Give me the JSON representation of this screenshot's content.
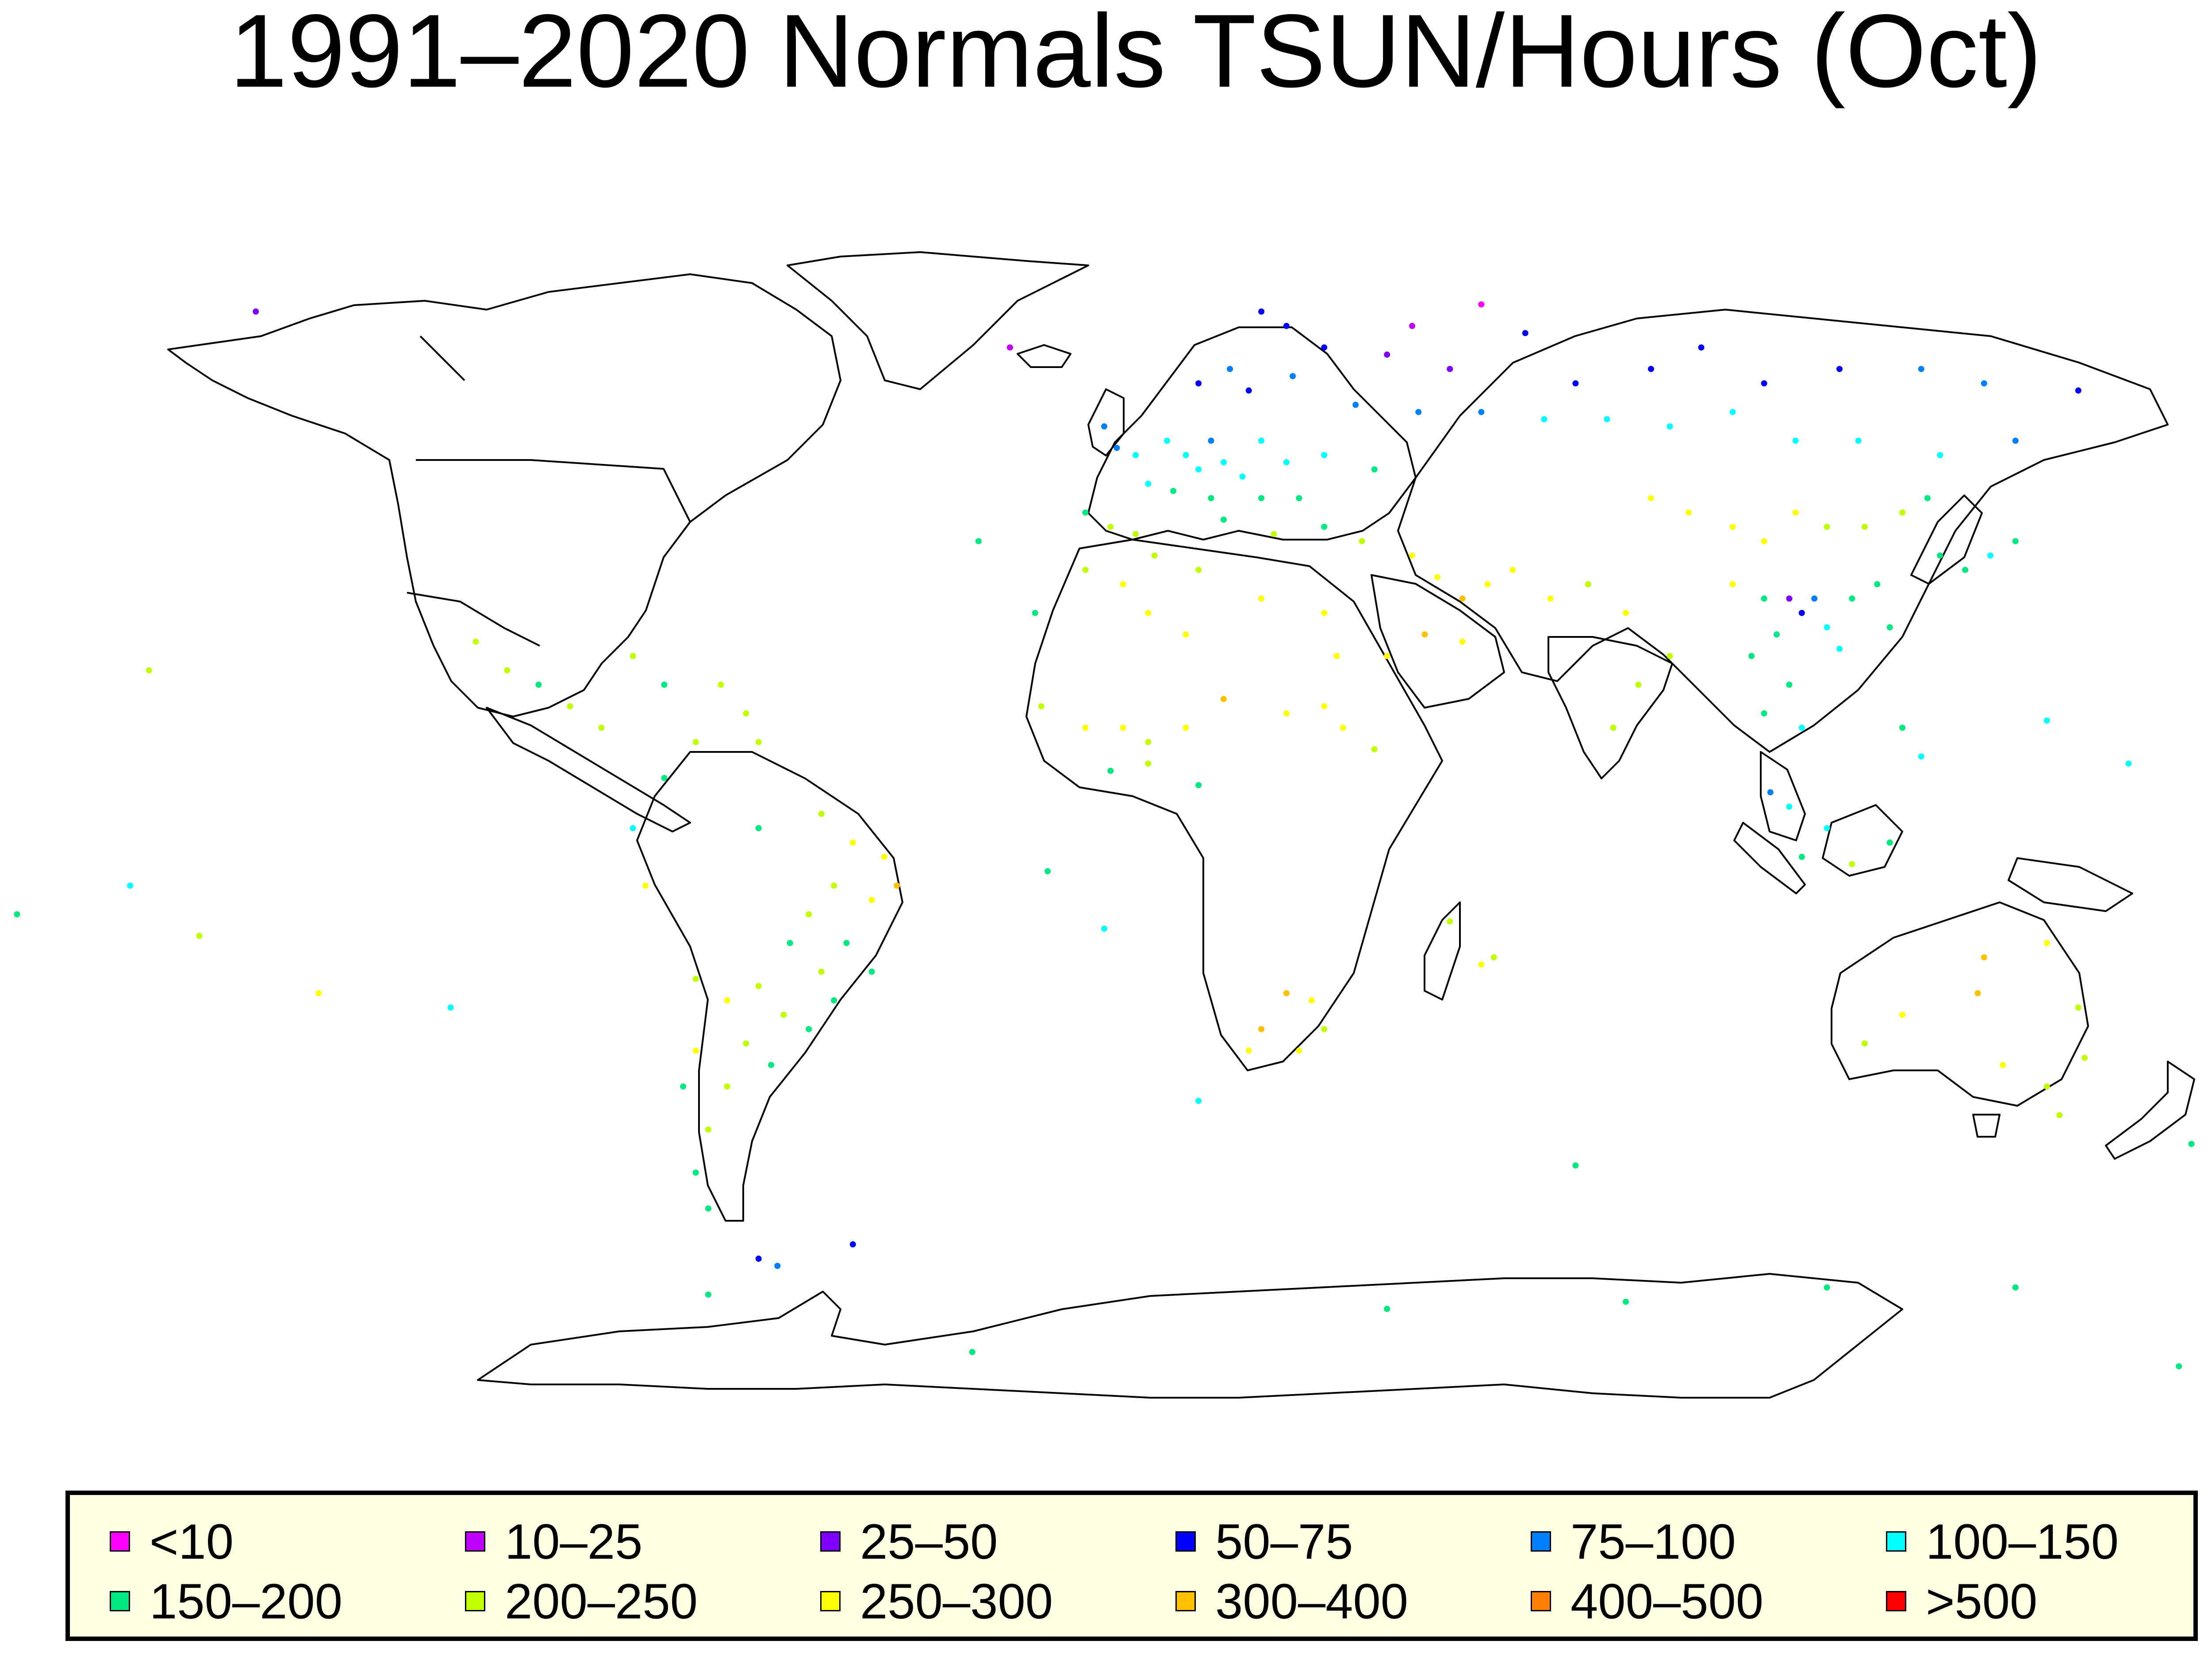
{
  "title": "1991–2020 Normals TSUN/Hours (Oct)",
  "map": {
    "projection": "equirectangular",
    "lon_range": [
      -180,
      180
    ],
    "lat_range": [
      -90,
      90
    ],
    "coastline_color": "#000000",
    "background": "#ffffff"
  },
  "legend": {
    "background": "#fefee2",
    "bins": [
      {
        "label": "<10",
        "color": "#ff00ff"
      },
      {
        "label": "10–25",
        "color": "#c000ff"
      },
      {
        "label": "25–50",
        "color": "#8000ff"
      },
      {
        "label": "50–75",
        "color": "#0000ff"
      },
      {
        "label": "75–100",
        "color": "#0080ff"
      },
      {
        "label": "100–150",
        "color": "#00ffff"
      },
      {
        "label": "150–200",
        "color": "#00e880"
      },
      {
        "label": "200–250",
        "color": "#c0ff00"
      },
      {
        "label": "250–300",
        "color": "#ffff00"
      },
      {
        "label": "300–400",
        "color": "#ffc000"
      },
      {
        "label": "400–500",
        "color": "#ff8000"
      },
      {
        "label": ">500",
        "color": "#ff0000"
      }
    ]
  },
  "stations": [
    {
      "lon": 55,
      "lat": 71,
      "bin": 0
    },
    {
      "lon": 44,
      "lat": 68,
      "bin": 1
    },
    {
      "lon": -140,
      "lat": 70,
      "bin": 2
    },
    {
      "lon": -20,
      "lat": 65,
      "bin": 1
    },
    {
      "lon": 20,
      "lat": 70,
      "bin": 3
    },
    {
      "lon": 24,
      "lat": 68,
      "bin": 3
    },
    {
      "lon": 30,
      "lat": 65,
      "bin": 3
    },
    {
      "lon": 40,
      "lat": 64,
      "bin": 2
    },
    {
      "lon": 50,
      "lat": 62,
      "bin": 2
    },
    {
      "lon": 62,
      "lat": 67,
      "bin": 3
    },
    {
      "lon": 70,
      "lat": 60,
      "bin": 3
    },
    {
      "lon": 82,
      "lat": 62,
      "bin": 3
    },
    {
      "lon": 90,
      "lat": 65,
      "bin": 3
    },
    {
      "lon": 100,
      "lat": 60,
      "bin": 3
    },
    {
      "lon": 112,
      "lat": 62,
      "bin": 3
    },
    {
      "lon": 125,
      "lat": 62,
      "bin": 4
    },
    {
      "lon": 135,
      "lat": 60,
      "bin": 4
    },
    {
      "lon": 150,
      "lat": 59,
      "bin": 3
    },
    {
      "lon": 10,
      "lat": 60,
      "bin": 3
    },
    {
      "lon": 15,
      "lat": 62,
      "bin": 4
    },
    {
      "lon": 18,
      "lat": 59,
      "bin": 3
    },
    {
      "lon": 25,
      "lat": 61,
      "bin": 4
    },
    {
      "lon": 35,
      "lat": 57,
      "bin": 4
    },
    {
      "lon": 45,
      "lat": 56,
      "bin": 4
    },
    {
      "lon": 55,
      "lat": 56,
      "bin": 4
    },
    {
      "lon": 65,
      "lat": 55,
      "bin": 5
    },
    {
      "lon": 75,
      "lat": 55,
      "bin": 5
    },
    {
      "lon": 85,
      "lat": 54,
      "bin": 5
    },
    {
      "lon": 95,
      "lat": 56,
      "bin": 5
    },
    {
      "lon": 105,
      "lat": 52,
      "bin": 5
    },
    {
      "lon": 115,
      "lat": 52,
      "bin": 5
    },
    {
      "lon": 128,
      "lat": 50,
      "bin": 5
    },
    {
      "lon": 140,
      "lat": 52,
      "bin": 4
    },
    {
      "lon": -5,
      "lat": 54,
      "bin": 4
    },
    {
      "lon": -3,
      "lat": 51,
      "bin": 4
    },
    {
      "lon": 0,
      "lat": 50,
      "bin": 5
    },
    {
      "lon": 5,
      "lat": 52,
      "bin": 5
    },
    {
      "lon": 8,
      "lat": 50,
      "bin": 5
    },
    {
      "lon": 10,
      "lat": 48,
      "bin": 5
    },
    {
      "lon": 12,
      "lat": 52,
      "bin": 4
    },
    {
      "lon": 14,
      "lat": 49,
      "bin": 5
    },
    {
      "lon": 17,
      "lat": 47,
      "bin": 5
    },
    {
      "lon": 20,
      "lat": 52,
      "bin": 5
    },
    {
      "lon": 24,
      "lat": 49,
      "bin": 5
    },
    {
      "lon": 30,
      "lat": 50,
      "bin": 5
    },
    {
      "lon": 38,
      "lat": 48,
      "bin": 6
    },
    {
      "lon": 2,
      "lat": 46,
      "bin": 5
    },
    {
      "lon": 6,
      "lat": 45,
      "bin": 6
    },
    {
      "lon": 12,
      "lat": 44,
      "bin": 6
    },
    {
      "lon": 20,
      "lat": 44,
      "bin": 6
    },
    {
      "lon": 26,
      "lat": 44,
      "bin": 6
    },
    {
      "lon": -8,
      "lat": 42,
      "bin": 6
    },
    {
      "lon": -4,
      "lat": 40,
      "bin": 7
    },
    {
      "lon": 0,
      "lat": 39,
      "bin": 7
    },
    {
      "lon": 14,
      "lat": 41,
      "bin": 6
    },
    {
      "lon": 22,
      "lat": 39,
      "bin": 7
    },
    {
      "lon": 30,
      "lat": 40,
      "bin": 6
    },
    {
      "lon": 36,
      "lat": 38,
      "bin": 7
    },
    {
      "lon": 44,
      "lat": 36,
      "bin": 8
    },
    {
      "lon": 48,
      "lat": 33,
      "bin": 8
    },
    {
      "lon": 52,
      "lat": 30,
      "bin": 9
    },
    {
      "lon": 56,
      "lat": 32,
      "bin": 8
    },
    {
      "lon": 60,
      "lat": 34,
      "bin": 8
    },
    {
      "lon": 46,
      "lat": 25,
      "bin": 9
    },
    {
      "lon": 52,
      "lat": 24,
      "bin": 8
    },
    {
      "lon": 40,
      "lat": 22,
      "bin": 8
    },
    {
      "lon": 66,
      "lat": 30,
      "bin": 8
    },
    {
      "lon": 72,
      "lat": 32,
      "bin": 7
    },
    {
      "lon": 78,
      "lat": 28,
      "bin": 8
    },
    {
      "lon": 85,
      "lat": 22,
      "bin": 7
    },
    {
      "lon": 80,
      "lat": 18,
      "bin": 7
    },
    {
      "lon": 76,
      "lat": 12,
      "bin": 7
    },
    {
      "lon": 82,
      "lat": 44,
      "bin": 8
    },
    {
      "lon": 88,
      "lat": 42,
      "bin": 8
    },
    {
      "lon": 95,
      "lat": 40,
      "bin": 8
    },
    {
      "lon": 100,
      "lat": 38,
      "bin": 8
    },
    {
      "lon": 105,
      "lat": 42,
      "bin": 8
    },
    {
      "lon": 110,
      "lat": 40,
      "bin": 7
    },
    {
      "lon": 116,
      "lat": 40,
      "bin": 7
    },
    {
      "lon": 122,
      "lat": 42,
      "bin": 7
    },
    {
      "lon": 126,
      "lat": 44,
      "bin": 6
    },
    {
      "lon": 95,
      "lat": 32,
      "bin": 8
    },
    {
      "lon": 100,
      "lat": 30,
      "bin": 6
    },
    {
      "lon": 104,
      "lat": 30,
      "bin": 2
    },
    {
      "lon": 106,
      "lat": 28,
      "bin": 3
    },
    {
      "lon": 108,
      "lat": 30,
      "bin": 4
    },
    {
      "lon": 110,
      "lat": 26,
      "bin": 5
    },
    {
      "lon": 114,
      "lat": 30,
      "bin": 6
    },
    {
      "lon": 118,
      "lat": 32,
      "bin": 6
    },
    {
      "lon": 112,
      "lat": 23,
      "bin": 5
    },
    {
      "lon": 120,
      "lat": 26,
      "bin": 6
    },
    {
      "lon": 102,
      "lat": 25,
      "bin": 6
    },
    {
      "lon": 98,
      "lat": 22,
      "bin": 6
    },
    {
      "lon": 104,
      "lat": 18,
      "bin": 6
    },
    {
      "lon": 100,
      "lat": 14,
      "bin": 6
    },
    {
      "lon": 106,
      "lat": 12,
      "bin": 5
    },
    {
      "lon": 128,
      "lat": 36,
      "bin": 6
    },
    {
      "lon": 136,
      "lat": 36,
      "bin": 5
    },
    {
      "lon": 140,
      "lat": 38,
      "bin": 6
    },
    {
      "lon": 132,
      "lat": 34,
      "bin": 6
    },
    {
      "lon": 101,
      "lat": 3,
      "bin": 4
    },
    {
      "lon": 104,
      "lat": 1,
      "bin": 5
    },
    {
      "lon": 110,
      "lat": -2,
      "bin": 5
    },
    {
      "lon": 106,
      "lat": -6,
      "bin": 6
    },
    {
      "lon": 114,
      "lat": -7,
      "bin": 7
    },
    {
      "lon": 120,
      "lat": -4,
      "bin": 6
    },
    {
      "lon": 122,
      "lat": 12,
      "bin": 6
    },
    {
      "lon": 125,
      "lat": 8,
      "bin": 5
    },
    {
      "lon": 145,
      "lat": 13,
      "bin": 5
    },
    {
      "lon": 158,
      "lat": 7,
      "bin": 5
    },
    {
      "lon": 178,
      "lat": -18,
      "bin": 6
    },
    {
      "lon": -8,
      "lat": 34,
      "bin": 7
    },
    {
      "lon": -2,
      "lat": 32,
      "bin": 8
    },
    {
      "lon": 3,
      "lat": 36,
      "bin": 7
    },
    {
      "lon": 10,
      "lat": 34,
      "bin": 7
    },
    {
      "lon": 2,
      "lat": 28,
      "bin": 8
    },
    {
      "lon": 8,
      "lat": 25,
      "bin": 8
    },
    {
      "lon": 20,
      "lat": 30,
      "bin": 8
    },
    {
      "lon": 30,
      "lat": 28,
      "bin": 8
    },
    {
      "lon": 32,
      "lat": 22,
      "bin": 8
    },
    {
      "lon": -16,
      "lat": 28,
      "bin": 6
    },
    {
      "lon": -15,
      "lat": 15,
      "bin": 7
    },
    {
      "lon": -8,
      "lat": 12,
      "bin": 8
    },
    {
      "lon": -2,
      "lat": 12,
      "bin": 8
    },
    {
      "lon": 2,
      "lat": 10,
      "bin": 7
    },
    {
      "lon": 8,
      "lat": 12,
      "bin": 8
    },
    {
      "lon": 14,
      "lat": 16,
      "bin": 9
    },
    {
      "lon": 24,
      "lat": 14,
      "bin": 8
    },
    {
      "lon": 30,
      "lat": 15,
      "bin": 8
    },
    {
      "lon": 33,
      "lat": 12,
      "bin": 8
    },
    {
      "lon": 38,
      "lat": 9,
      "bin": 7
    },
    {
      "lon": -4,
      "lat": 6,
      "bin": 6
    },
    {
      "lon": 2,
      "lat": 7,
      "bin": 7
    },
    {
      "lon": 10,
      "lat": 4,
      "bin": 6
    },
    {
      "lon": 24,
      "lat": -25,
      "bin": 9
    },
    {
      "lon": 28,
      "lat": -26,
      "bin": 8
    },
    {
      "lon": 20,
      "lat": -30,
      "bin": 9
    },
    {
      "lon": 18,
      "lat": -33,
      "bin": 8
    },
    {
      "lon": 30,
      "lat": -30,
      "bin": 7
    },
    {
      "lon": 26,
      "lat": -33,
      "bin": 8
    },
    {
      "lon": 57,
      "lat": -20,
      "bin": 7
    },
    {
      "lon": 55,
      "lat": -21,
      "bin": 8
    },
    {
      "lon": 50,
      "lat": -15,
      "bin": 7
    },
    {
      "lon": -100,
      "lat": 20,
      "bin": 7
    },
    {
      "lon": -105,
      "lat": 24,
      "bin": 7
    },
    {
      "lon": -95,
      "lat": 18,
      "bin": 6
    },
    {
      "lon": -90,
      "lat": 15,
      "bin": 7
    },
    {
      "lon": -85,
      "lat": 12,
      "bin": 7
    },
    {
      "lon": -80,
      "lat": 22,
      "bin": 7
    },
    {
      "lon": -75,
      "lat": 18,
      "bin": 6
    },
    {
      "lon": -66,
      "lat": 18,
      "bin": 7
    },
    {
      "lon": -62,
      "lat": 14,
      "bin": 7
    },
    {
      "lon": -60,
      "lat": 10,
      "bin": 7
    },
    {
      "lon": -70,
      "lat": 10,
      "bin": 7
    },
    {
      "lon": -75,
      "lat": 5,
      "bin": 6
    },
    {
      "lon": -60,
      "lat": -2,
      "bin": 6
    },
    {
      "lon": -50,
      "lat": 0,
      "bin": 7
    },
    {
      "lon": -45,
      "lat": -4,
      "bin": 8
    },
    {
      "lon": -40,
      "lat": -6,
      "bin": 8
    },
    {
      "lon": -38,
      "lat": -10,
      "bin": 9
    },
    {
      "lon": -42,
      "lat": -12,
      "bin": 8
    },
    {
      "lon": -48,
      "lat": -10,
      "bin": 7
    },
    {
      "lon": -52,
      "lat": -14,
      "bin": 7
    },
    {
      "lon": -46,
      "lat": -18,
      "bin": 6
    },
    {
      "lon": -42,
      "lat": -22,
      "bin": 6
    },
    {
      "lon": -50,
      "lat": -22,
      "bin": 7
    },
    {
      "lon": -55,
      "lat": -18,
      "bin": 6
    },
    {
      "lon": -48,
      "lat": -26,
      "bin": 6
    },
    {
      "lon": -52,
      "lat": -30,
      "bin": 6
    },
    {
      "lon": -56,
      "lat": -28,
      "bin": 7
    },
    {
      "lon": -60,
      "lat": -24,
      "bin": 7
    },
    {
      "lon": -65,
      "lat": -26,
      "bin": 8
    },
    {
      "lon": -62,
      "lat": -32,
      "bin": 7
    },
    {
      "lon": -58,
      "lat": -35,
      "bin": 6
    },
    {
      "lon": -65,
      "lat": -38,
      "bin": 7
    },
    {
      "lon": -68,
      "lat": -44,
      "bin": 7
    },
    {
      "lon": -70,
      "lat": -50,
      "bin": 6
    },
    {
      "lon": -70,
      "lat": -33,
      "bin": 8
    },
    {
      "lon": -72,
      "lat": -38,
      "bin": 6
    },
    {
      "lon": -70,
      "lat": -23,
      "bin": 7
    },
    {
      "lon": -80,
      "lat": -2,
      "bin": 5
    },
    {
      "lon": -78,
      "lat": -10,
      "bin": 8
    },
    {
      "lon": -68,
      "lat": -55,
      "bin": 6
    },
    {
      "lon": -149,
      "lat": -17,
      "bin": 7
    },
    {
      "lon": -157,
      "lat": 20,
      "bin": 7
    },
    {
      "lon": -160,
      "lat": -10,
      "bin": 5
    },
    {
      "lon": -178,
      "lat": -14,
      "bin": 6
    },
    {
      "lon": -130,
      "lat": -25,
      "bin": 8
    },
    {
      "lon": -109,
      "lat": -27,
      "bin": 5
    },
    {
      "lon": -14,
      "lat": -8,
      "bin": 6
    },
    {
      "lon": -5,
      "lat": -16,
      "bin": 5
    },
    {
      "lon": -25,
      "lat": 38,
      "bin": 6
    },
    {
      "lon": 10,
      "lat": -40,
      "bin": 5
    },
    {
      "lon": 70,
      "lat": -49,
      "bin": 6
    },
    {
      "lon": 135,
      "lat": -20,
      "bin": 9
    },
    {
      "lon": 134,
      "lat": -25,
      "bin": 9
    },
    {
      "lon": 122,
      "lat": -28,
      "bin": 8
    },
    {
      "lon": 116,
      "lat": -32,
      "bin": 7
    },
    {
      "lon": 145,
      "lat": -18,
      "bin": 8
    },
    {
      "lon": 150,
      "lat": -27,
      "bin": 7
    },
    {
      "lon": 151,
      "lat": -34,
      "bin": 7
    },
    {
      "lon": 145,
      "lat": -38,
      "bin": 7
    },
    {
      "lon": 138,
      "lat": -35,
      "bin": 8
    },
    {
      "lon": 147,
      "lat": -42,
      "bin": 7
    },
    {
      "lon": 174,
      "lat": -37,
      "bin": 6
    },
    {
      "lon": 172,
      "lat": -43,
      "bin": 6
    },
    {
      "lon": 168,
      "lat": -46,
      "bin": 6
    },
    {
      "lon": -60,
      "lat": -62,
      "bin": 3
    },
    {
      "lon": -57,
      "lat": -63,
      "bin": 4
    },
    {
      "lon": -45,
      "lat": -60,
      "bin": 3
    },
    {
      "lon": 40,
      "lat": -69,
      "bin": 6
    },
    {
      "lon": 78,
      "lat": -68,
      "bin": 6
    },
    {
      "lon": 110,
      "lat": -66,
      "bin": 6
    },
    {
      "lon": 140,
      "lat": -66,
      "bin": 6
    },
    {
      "lon": 166,
      "lat": -77,
      "bin": 6
    },
    {
      "lon": -26,
      "lat": -75,
      "bin": 6
    },
    {
      "lon": -68,
      "lat": -67,
      "bin": 6
    }
  ]
}
